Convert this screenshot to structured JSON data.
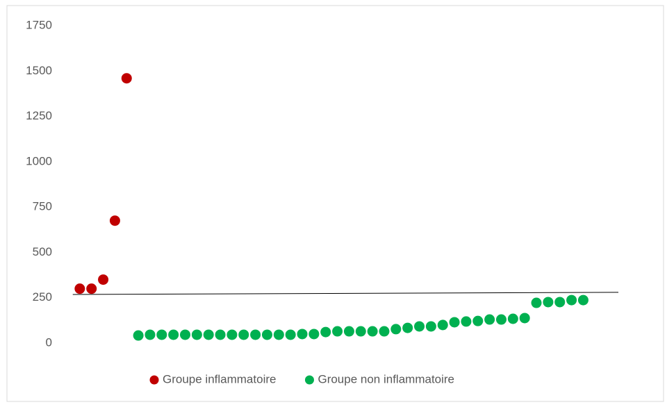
{
  "chart_data": {
    "type": "scatter",
    "ylim": [
      0,
      1750
    ],
    "yticks": [
      0,
      250,
      500,
      750,
      1000,
      1250,
      1500,
      1750
    ],
    "xlim": [
      0,
      47
    ],
    "grid": false,
    "legend": "bottom",
    "series": [
      {
        "name": "Groupe inflammatoire",
        "color": "#c00000",
        "x": [
          1,
          2,
          3,
          4,
          5
        ],
        "values": [
          300,
          300,
          350,
          675,
          1460
        ]
      },
      {
        "name": "Groupe non inflammatoire",
        "color": "#00b050",
        "x": [
          6,
          7,
          8,
          9,
          10,
          11,
          12,
          13,
          14,
          15,
          16,
          17,
          18,
          19,
          20,
          21,
          22,
          23,
          24,
          25,
          26,
          27,
          28,
          29,
          30,
          31,
          32,
          33,
          34,
          35,
          36,
          37,
          38,
          39,
          40,
          41,
          42,
          43,
          44
        ],
        "values": [
          42,
          46,
          46,
          46,
          46,
          46,
          46,
          46,
          46,
          46,
          46,
          46,
          46,
          46,
          50,
          50,
          61,
          65,
          65,
          65,
          65,
          65,
          77,
          84,
          92,
          92,
          100,
          115,
          119,
          122,
          130,
          130,
          134,
          138,
          222,
          226,
          226,
          237,
          237
        ]
      }
    ],
    "reference_line": {
      "x": [
        0.4,
        47
      ],
      "values": [
        268,
        280
      ],
      "color": "#000000"
    }
  }
}
